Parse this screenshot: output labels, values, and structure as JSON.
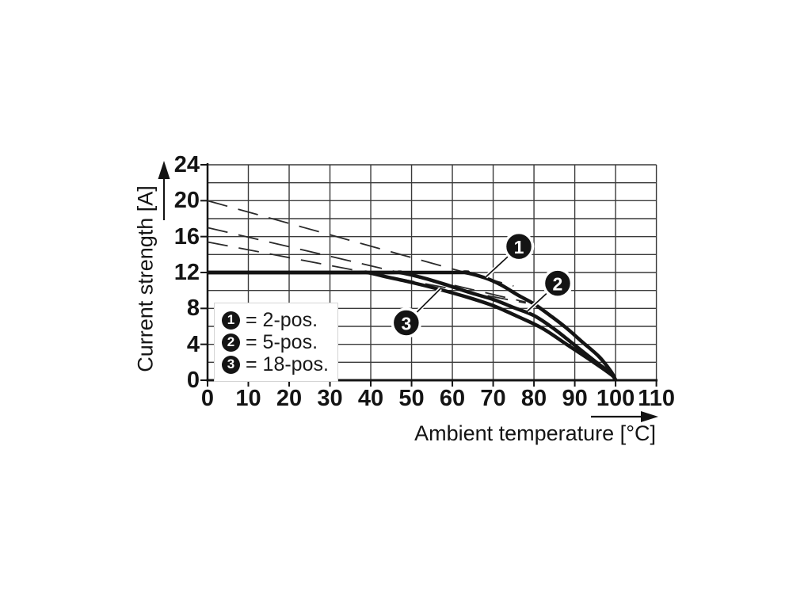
{
  "page": {
    "background": "#ffffff"
  },
  "chart_data": {
    "type": "line",
    "title": "",
    "xlabel": "Ambient temperature [°C]",
    "ylabel": "Current strength [A]",
    "xlim": [
      0,
      110
    ],
    "ylim": [
      0,
      24
    ],
    "x_ticks": [
      0,
      10,
      20,
      30,
      40,
      50,
      60,
      70,
      80,
      90,
      100,
      110
    ],
    "y_ticks": [
      24,
      20,
      16,
      12,
      8,
      4,
      0
    ],
    "grid": {
      "on": true,
      "x_step": 10,
      "y_step": 2
    },
    "colors": {
      "curve": "#141414",
      "grid": "#3a3a3a",
      "axis": "#141414",
      "dashed": "#2a2a2a",
      "marker_bg": "#141414",
      "marker_text": "#ffffff",
      "background": "#ffffff"
    },
    "series": [
      {
        "marker": "1",
        "name": "2-pos.",
        "points": [
          [
            0,
            12
          ],
          [
            58,
            12
          ],
          [
            63,
            12
          ],
          [
            68,
            11.4
          ],
          [
            72,
            10.6
          ],
          [
            76,
            9.5
          ],
          [
            80,
            8.5
          ],
          [
            84,
            7.2
          ],
          [
            88,
            5.8
          ],
          [
            92,
            4.2
          ],
          [
            96,
            2.6
          ],
          [
            99,
            0.9
          ],
          [
            100,
            0
          ]
        ]
      },
      {
        "marker": "2",
        "name": "5-pos.",
        "points": [
          [
            0,
            12
          ],
          [
            43,
            12
          ],
          [
            47,
            12
          ],
          [
            52,
            11.5
          ],
          [
            58,
            10.7
          ],
          [
            64,
            9.8
          ],
          [
            70,
            9.0
          ],
          [
            75,
            8.1
          ],
          [
            80,
            7.2
          ],
          [
            85,
            5.7
          ],
          [
            90,
            3.9
          ],
          [
            95,
            2.1
          ],
          [
            99,
            0.7
          ],
          [
            100,
            0
          ]
        ]
      },
      {
        "marker": "3",
        "name": "18-pos.",
        "points": [
          [
            0,
            12
          ],
          [
            35,
            12
          ],
          [
            39,
            12
          ],
          [
            44,
            11.5
          ],
          [
            50,
            10.9
          ],
          [
            57,
            10.1
          ],
          [
            64,
            9.2
          ],
          [
            70,
            8.3
          ],
          [
            76,
            7.1
          ],
          [
            82,
            5.8
          ],
          [
            88,
            4.0
          ],
          [
            94,
            2.2
          ],
          [
            99,
            0.6
          ],
          [
            100,
            0
          ]
        ]
      }
    ],
    "dashed_lines": [
      {
        "name": "linear-derating-2-pos",
        "from": [
          0,
          20
        ],
        "to": [
          75,
          10.5
        ]
      },
      {
        "name": "linear-derating-5-pos",
        "from": [
          0,
          17
        ],
        "to": [
          78,
          8.7
        ]
      },
      {
        "name": "linear-derating-18-pos",
        "from": [
          0,
          15.4
        ],
        "to": [
          78,
          8.6
        ]
      }
    ],
    "callouts": [
      {
        "label": "1",
        "circle_at": [
          76.3,
          14.9
        ],
        "points_to": [
          68.2,
          11.5
        ]
      },
      {
        "label": "2",
        "circle_at": [
          85.8,
          10.8
        ],
        "points_to": [
          78.4,
          7.7
        ]
      },
      {
        "label": "3",
        "circle_at": [
          48.7,
          6.4
        ],
        "points_to": [
          57.1,
          10.2
        ]
      }
    ],
    "legend": {
      "position": "inside-bottom-left",
      "items": [
        {
          "marker": "1",
          "text": "= 2-pos."
        },
        {
          "marker": "2",
          "text": "= 5-pos."
        },
        {
          "marker": "3",
          "text": "= 18-pos."
        }
      ]
    }
  }
}
